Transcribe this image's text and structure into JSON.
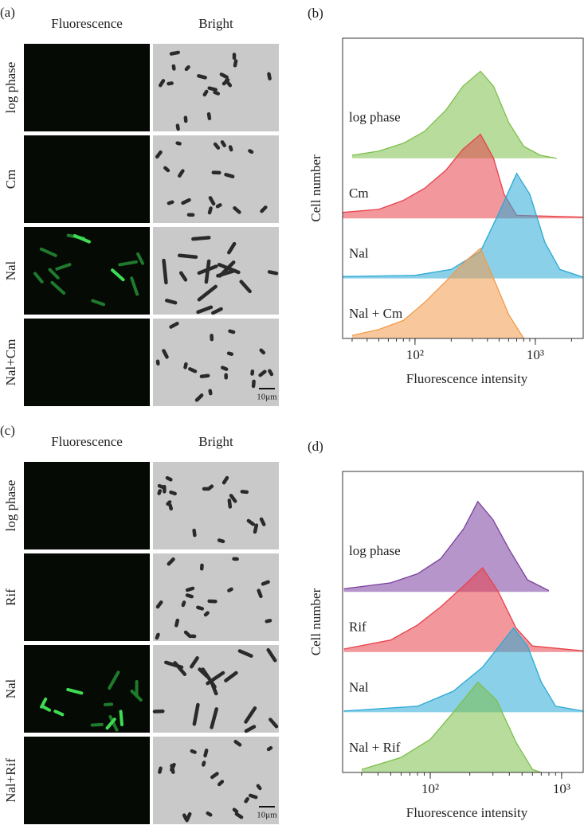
{
  "panels": [
    {
      "label": "(a)",
      "columns": [
        "Fluorescence",
        "Bright"
      ],
      "rows": [
        "log phase",
        "Cm",
        "Nal",
        "Nal+Cm"
      ],
      "scale_bar": "10μm"
    },
    {
      "label": "(c)",
      "columns": [
        "Fluorescence",
        "Bright"
      ],
      "rows": [
        "log phase",
        "Rif",
        "Nal",
        "Nal+Rif"
      ],
      "scale_bar": "10μm"
    }
  ],
  "chart_data": [
    {
      "type": "area",
      "label": "(b)",
      "xlabel": "Fluorescence intensity",
      "ylabel": "Cell number",
      "xscale": "log",
      "xlim": [
        25,
        2500
      ],
      "xticks": [
        {
          "value": 100,
          "label": "10²"
        },
        {
          "value": 1000,
          "label": "10³"
        }
      ],
      "series": [
        {
          "name": "log phase",
          "color": "#7cc04a",
          "x": [
            30,
            50,
            80,
            120,
            180,
            250,
            350,
            450,
            600,
            800,
            1100,
            1500
          ],
          "values": [
            0.05,
            0.12,
            0.25,
            0.45,
            0.8,
            1.2,
            1.45,
            1.2,
            0.6,
            0.2,
            0.05,
            0
          ]
        },
        {
          "name": "Cm",
          "color": "#e8424a",
          "x": [
            25,
            50,
            80,
            120,
            180,
            250,
            350,
            450,
            550,
            700,
            2500
          ],
          "values": [
            0.1,
            0.15,
            0.3,
            0.5,
            0.8,
            1.15,
            1.4,
            1.0,
            0.4,
            0.05,
            0.02
          ]
        },
        {
          "name": "Nal",
          "color": "#2aa9d6",
          "x": [
            25,
            100,
            200,
            350,
            500,
            700,
            900,
            1200,
            1600,
            2500
          ],
          "values": [
            0.03,
            0.05,
            0.15,
            0.45,
            1.1,
            1.75,
            1.4,
            0.6,
            0.15,
            0.02
          ]
        },
        {
          "name": "Nal + Cm",
          "color": "#f29a4a",
          "x": [
            30,
            50,
            80,
            120,
            180,
            250,
            350,
            450,
            600,
            800
          ],
          "values": [
            0.05,
            0.15,
            0.3,
            0.6,
            0.95,
            1.25,
            1.5,
            1.0,
            0.4,
            0
          ]
        }
      ]
    },
    {
      "type": "area",
      "label": "(d)",
      "xlabel": "Fluorescence intensity",
      "ylabel": "Cell number",
      "xscale": "log",
      "xlim": [
        21.5,
        1460
      ],
      "xticks": [
        {
          "value": 100,
          "label": "10²"
        },
        {
          "value": 1000,
          "label": "10³"
        }
      ],
      "series": [
        {
          "name": "log phase",
          "color": "#7a3f9e",
          "x": [
            22,
            50,
            80,
            120,
            180,
            230,
            300,
            400,
            550,
            800
          ],
          "values": [
            0.05,
            0.15,
            0.3,
            0.55,
            1.05,
            1.5,
            1.2,
            0.7,
            0.2,
            0.02
          ]
        },
        {
          "name": "Rif",
          "color": "#e8424a",
          "x": [
            22,
            50,
            80,
            120,
            180,
            250,
            330,
            450,
            600,
            1460
          ],
          "values": [
            0.05,
            0.2,
            0.45,
            0.75,
            1.1,
            1.4,
            1.0,
            0.4,
            0.1,
            0.02
          ]
        },
        {
          "name": "Nal",
          "color": "#2aa9d6",
          "x": [
            22,
            80,
            150,
            250,
            350,
            430,
            550,
            700,
            900,
            1460
          ],
          "values": [
            0.02,
            0.1,
            0.35,
            0.75,
            1.15,
            1.4,
            1.1,
            0.5,
            0.1,
            0.02
          ]
        },
        {
          "name": "Nal + Rif",
          "color": "#7cc04a",
          "x": [
            30,
            60,
            100,
            150,
            230,
            320,
            450,
            600,
            700
          ],
          "values": [
            0.05,
            0.25,
            0.55,
            1.0,
            1.5,
            1.2,
            0.5,
            0.05,
            0
          ]
        }
      ]
    }
  ]
}
